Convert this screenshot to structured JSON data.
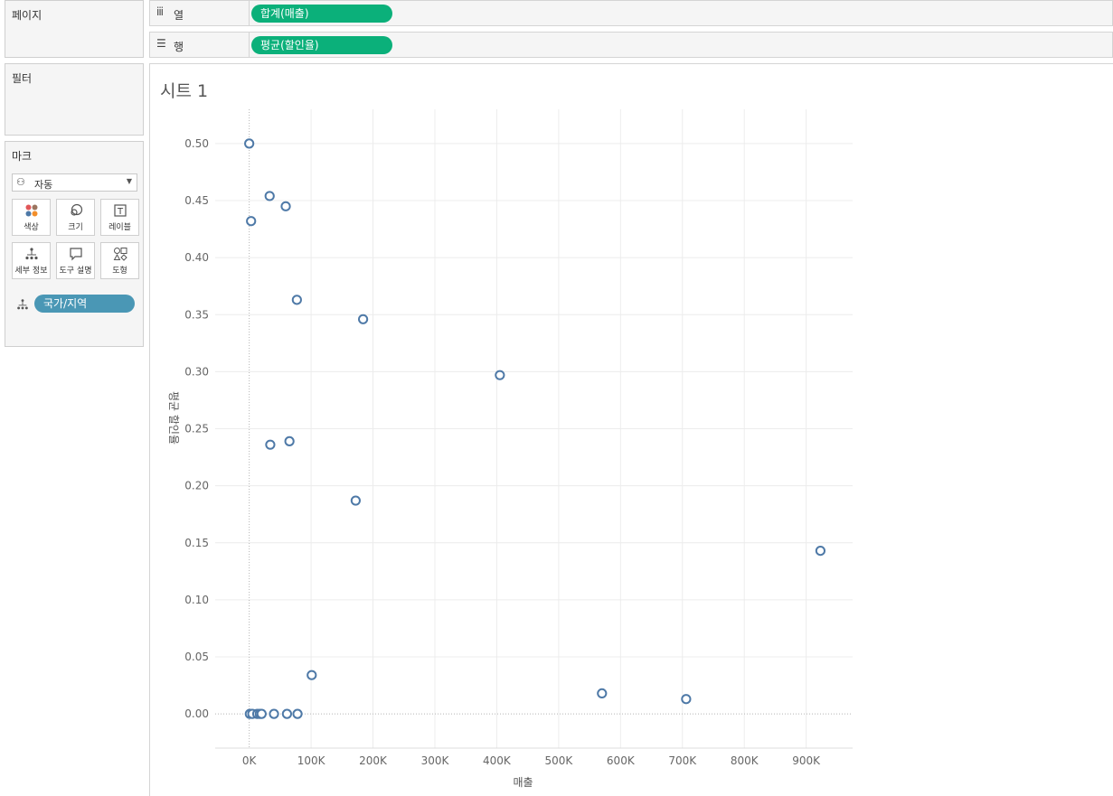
{
  "pages_panel": {
    "title": "페이지"
  },
  "filters_panel": {
    "title": "필터"
  },
  "marks_panel": {
    "title": "마크",
    "mark_type": "자동",
    "buttons": [
      {
        "label": "색상",
        "icon": "color-icon"
      },
      {
        "label": "크기",
        "icon": "size-icon"
      },
      {
        "label": "레이블",
        "icon": "label-icon"
      },
      {
        "label": "세부 정보",
        "icon": "detail-icon"
      },
      {
        "label": "도구 설명",
        "icon": "tooltip-icon"
      },
      {
        "label": "도형",
        "icon": "shape-icon"
      }
    ],
    "detail_field": "국가/지역"
  },
  "columns_shelf": {
    "label": "열",
    "pill": "합계(매출)"
  },
  "rows_shelf": {
    "label": "행",
    "pill": "평균(할인율)"
  },
  "sheet": {
    "title": "시트 1"
  },
  "colors": {
    "mark": "#4e79a7",
    "dimension_pill": "#4a97b5",
    "measure_pill": "#0bb07a"
  },
  "chart_data": {
    "type": "scatter",
    "xlabel": "매출",
    "ylabel": "평균 할인율",
    "xlim": [
      -55000,
      975000
    ],
    "ylim": [
      -0.03,
      0.53
    ],
    "xticks": [
      0,
      100000,
      200000,
      300000,
      400000,
      500000,
      600000,
      700000,
      800000,
      900000
    ],
    "xtick_labels": [
      "0K",
      "100K",
      "200K",
      "300K",
      "400K",
      "500K",
      "600K",
      "700K",
      "800K",
      "900K"
    ],
    "yticks": [
      0,
      0.05,
      0.1,
      0.15,
      0.2,
      0.25,
      0.3,
      0.35,
      0.4,
      0.45,
      0.5
    ],
    "ytick_labels": [
      "0.00",
      "0.05",
      "0.10",
      "0.15",
      "0.20",
      "0.25",
      "0.30",
      "0.35",
      "0.40",
      "0.45",
      "0.50"
    ],
    "grid": true,
    "points": [
      {
        "x": 0,
        "y": 0.5
      },
      {
        "x": 3000,
        "y": 0.432
      },
      {
        "x": 33000,
        "y": 0.454
      },
      {
        "x": 59000,
        "y": 0.445
      },
      {
        "x": 77000,
        "y": 0.363
      },
      {
        "x": 184000,
        "y": 0.346
      },
      {
        "x": 405000,
        "y": 0.297
      },
      {
        "x": 34000,
        "y": 0.236
      },
      {
        "x": 65000,
        "y": 0.239
      },
      {
        "x": 172000,
        "y": 0.187
      },
      {
        "x": 923000,
        "y": 0.143
      },
      {
        "x": 101000,
        "y": 0.034
      },
      {
        "x": 570000,
        "y": 0.018
      },
      {
        "x": 706000,
        "y": 0.013
      },
      {
        "x": 1000,
        "y": 0.0
      },
      {
        "x": 5000,
        "y": 0.0
      },
      {
        "x": 13000,
        "y": 0.0
      },
      {
        "x": 17000,
        "y": 0.0
      },
      {
        "x": 20000,
        "y": 0.0
      },
      {
        "x": 40000,
        "y": 0.0
      },
      {
        "x": 61000,
        "y": 0.0
      },
      {
        "x": 78000,
        "y": 0.0
      }
    ]
  }
}
